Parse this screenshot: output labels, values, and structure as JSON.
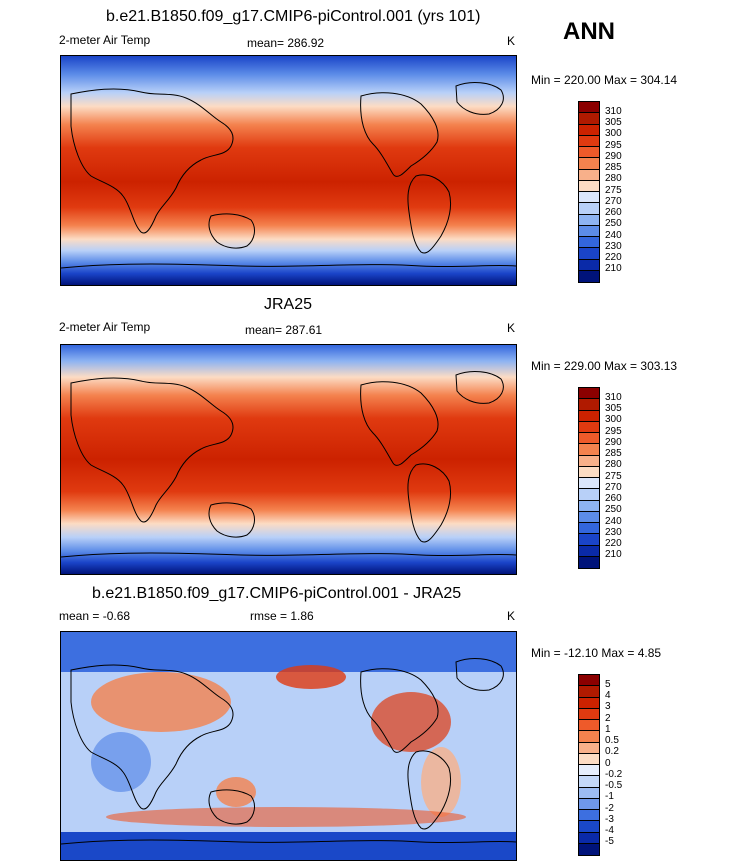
{
  "season": "ANN",
  "panels": [
    {
      "title": "b.e21.B1850.f09_g17.CMIP6-piControl.001 (yrs 101)",
      "left": "2-meter Air Temp",
      "center": "mean= 286.92",
      "units": "K",
      "minmax": "Min = 220.00 Max = 304.14",
      "levels": [
        "310",
        "305",
        "300",
        "295",
        "290",
        "285",
        "280",
        "275",
        "270",
        "260",
        "250",
        "240",
        "230",
        "220",
        "210"
      ],
      "colors": [
        "#8b0000",
        "#b01a00",
        "#cc2200",
        "#e03a10",
        "#ee5a2a",
        "#f4824e",
        "#f8b08a",
        "#fcdcc4",
        "#dbe6fb",
        "#b8d0f8",
        "#8db3f2",
        "#5c8ce8",
        "#3366dd",
        "#1a44c8",
        "#0a2aa8",
        "#00137a"
      ]
    },
    {
      "title": "JRA25",
      "left": "2-meter Air Temp",
      "center": "mean= 287.61",
      "units": "K",
      "minmax": "Min = 229.00 Max = 303.13",
      "levels": [
        "310",
        "305",
        "300",
        "295",
        "290",
        "285",
        "280",
        "275",
        "270",
        "260",
        "250",
        "240",
        "230",
        "220",
        "210"
      ],
      "colors": [
        "#8b0000",
        "#b01a00",
        "#cc2200",
        "#e03a10",
        "#ee5a2a",
        "#f4824e",
        "#f8b08a",
        "#fcdcc4",
        "#dbe6fb",
        "#b8d0f8",
        "#8db3f2",
        "#5c8ce8",
        "#3366dd",
        "#1a44c8",
        "#0a2aa8",
        "#00137a"
      ]
    },
    {
      "title": "b.e21.B1850.f09_g17.CMIP6-piControl.001 - JRA25",
      "left": "mean =  -0.68",
      "center": "rmse =   1.86",
      "units": "K",
      "minmax": "Min = -12.10 Max =   4.85",
      "levels": [
        "5",
        "4",
        "3",
        "2",
        "1",
        "0.5",
        "0.2",
        "0",
        "-0.2",
        "-0.5",
        "-1",
        "-2",
        "-3",
        "-4",
        "-5"
      ],
      "colors": [
        "#8b0000",
        "#b01a00",
        "#cc2200",
        "#e03a10",
        "#ee5a2a",
        "#f4824e",
        "#f8b08a",
        "#fcdcc4",
        "#e6eefc",
        "#c4d8f8",
        "#9dbcf2",
        "#6f98ea",
        "#3d6fe0",
        "#1a48c8",
        "#0a2aa8",
        "#00137a"
      ]
    }
  ]
}
